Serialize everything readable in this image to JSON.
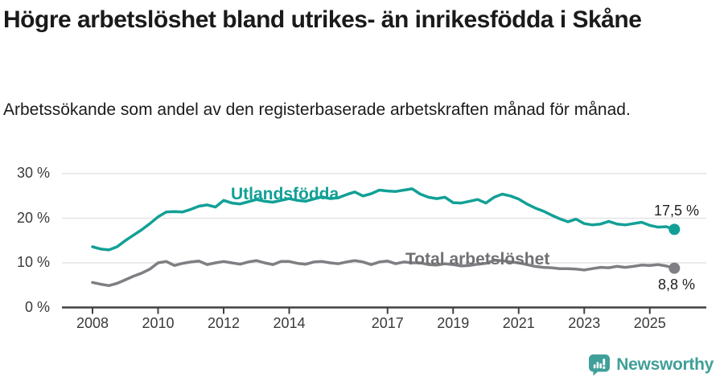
{
  "header": {
    "title": "Högre arbetslöshet bland utrikes- än inrikesfödda i Skåne",
    "subtitle": "Arbetssökande som andel av den registerbaserade arbetskraften månad för månad."
  },
  "chart_data": {
    "type": "line",
    "title": "Högre arbetslöshet bland utrikes- än inrikesfödda i Skåne",
    "subtitle": "Arbetssökande som andel av den registerbaserade arbetskraften månad för månad.",
    "xlabel": "",
    "ylabel": "",
    "ylim": [
      0,
      32
    ],
    "xlim": [
      2007.1,
      2026.7
    ],
    "grid": true,
    "legend_position": "inline-labels",
    "x_start": 2008.0,
    "x_step": 0.25,
    "yticks": [
      {
        "value": 0,
        "label": "0 %"
      },
      {
        "value": 10,
        "label": "10 %"
      },
      {
        "value": 20,
        "label": "20 %"
      },
      {
        "value": 30,
        "label": "30 %"
      }
    ],
    "xticks": [
      {
        "value": 2008,
        "label": "2008"
      },
      {
        "value": 2010,
        "label": "2010"
      },
      {
        "value": 2012,
        "label": "2012"
      },
      {
        "value": 2014,
        "label": "2014"
      },
      {
        "value": 2017,
        "label": "2017"
      },
      {
        "value": 2019,
        "label": "2019"
      },
      {
        "value": 2021,
        "label": "2021"
      },
      {
        "value": 2023,
        "label": "2023"
      },
      {
        "value": 2025,
        "label": "2025"
      }
    ],
    "series": [
      {
        "name": "Utlandsfödda",
        "color": "#12a096",
        "end_label": "17,5 %",
        "end_value": 17.5,
        "values": [
          13.6,
          13.1,
          12.9,
          13.6,
          15.0,
          16.2,
          17.4,
          18.8,
          20.3,
          21.4,
          21.5,
          21.4,
          22.0,
          22.7,
          23.0,
          22.5,
          24.0,
          23.4,
          23.2,
          23.7,
          24.2,
          23.8,
          23.6,
          24.0,
          24.4,
          24.0,
          23.8,
          24.3,
          24.8,
          24.4,
          24.6,
          25.3,
          25.9,
          25.0,
          25.5,
          26.3,
          26.1,
          26.0,
          26.3,
          26.6,
          25.4,
          24.7,
          24.4,
          24.7,
          23.5,
          23.4,
          23.8,
          24.2,
          23.4,
          24.7,
          25.4,
          25.0,
          24.3,
          23.2,
          22.3,
          21.6,
          20.7,
          19.9,
          19.2,
          19.8,
          18.8,
          18.5,
          18.7,
          19.3,
          18.7,
          18.5,
          18.8,
          19.1,
          18.4,
          18.0,
          18.1,
          17.5
        ]
      },
      {
        "name": "Total arbetslöshet",
        "color": "#7f7f83",
        "end_label": "8,8 %",
        "end_value": 8.8,
        "values": [
          5.6,
          5.2,
          4.9,
          5.4,
          6.2,
          7.0,
          7.7,
          8.6,
          10.0,
          10.3,
          9.4,
          9.9,
          10.2,
          10.4,
          9.6,
          10.0,
          10.3,
          10.0,
          9.7,
          10.2,
          10.5,
          10.0,
          9.6,
          10.3,
          10.3,
          9.9,
          9.7,
          10.2,
          10.3,
          10.0,
          9.8,
          10.2,
          10.5,
          10.2,
          9.6,
          10.2,
          10.4,
          9.8,
          10.2,
          10.0,
          10.0,
          9.6,
          9.5,
          9.8,
          9.6,
          9.3,
          9.4,
          9.7,
          9.9,
          10.6,
          10.5,
          10.2,
          10.0,
          9.6,
          9.2,
          9.0,
          8.9,
          8.7,
          8.7,
          8.6,
          8.4,
          8.7,
          9.0,
          8.9,
          9.2,
          9.0,
          9.2,
          9.5,
          9.4,
          9.6,
          9.3,
          8.8
        ]
      }
    ]
  },
  "footer": {
    "brand": "Newsworthy",
    "brand_color": "#3f9f99"
  }
}
